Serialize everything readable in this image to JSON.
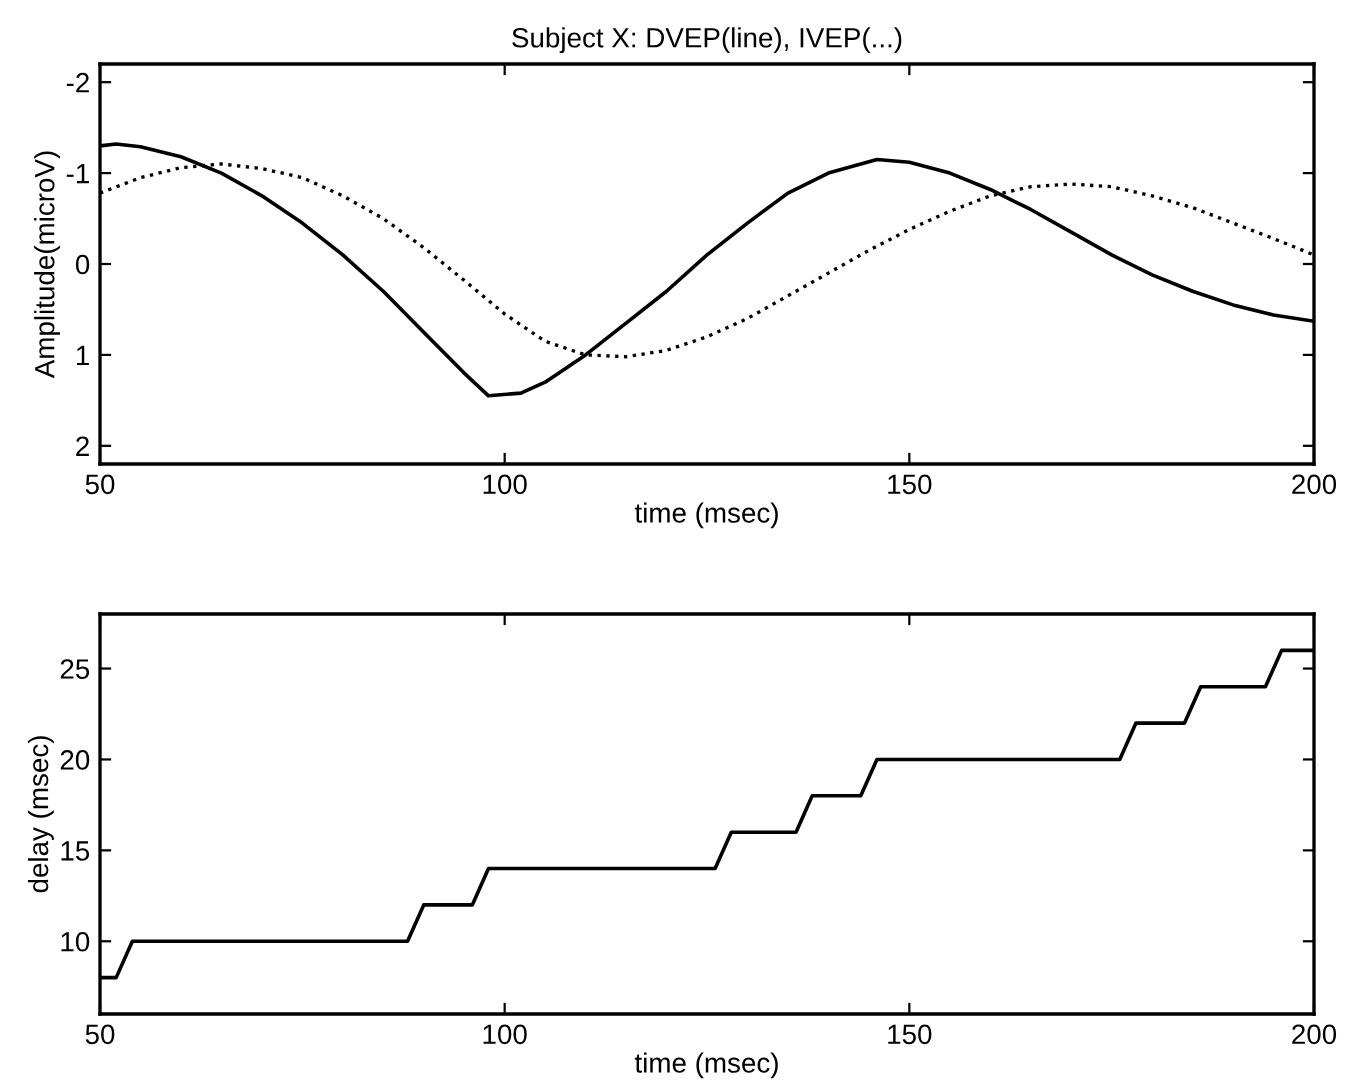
{
  "chart_data": [
    {
      "type": "line",
      "title": "Subject X: DVEP(line), IVEP(...)",
      "xlabel": "time (msec)",
      "ylabel": "Amplitude(microV)",
      "xlim": [
        50,
        200
      ],
      "xticks": [
        50,
        100,
        150,
        200
      ],
      "ylim": [
        2.2,
        -2.2
      ],
      "yticks": [
        -2,
        -1,
        0,
        1,
        2
      ],
      "marker": "none",
      "series": [
        {
          "color": "#000000",
          "line_style": "solid",
          "x": [
            50,
            52,
            55,
            60,
            65,
            70,
            75,
            80,
            85,
            90,
            95,
            98,
            102,
            105,
            110,
            115,
            120,
            125,
            130,
            135,
            140,
            146,
            150,
            155,
            160,
            165,
            170,
            175,
            180,
            185,
            190,
            195,
            200
          ],
          "values": [
            -1.3,
            -1.32,
            -1.29,
            -1.18,
            -1.0,
            -0.75,
            -0.45,
            -0.1,
            0.3,
            0.75,
            1.2,
            1.45,
            1.42,
            1.3,
            1.0,
            0.65,
            0.3,
            -0.1,
            -0.45,
            -0.78,
            -1.0,
            -1.15,
            -1.12,
            -1.0,
            -0.82,
            -0.6,
            -0.35,
            -0.1,
            0.12,
            0.3,
            0.45,
            0.56,
            0.63
          ]
        },
        {
          "color": "#000000",
          "line_style": "dotted",
          "x": [
            50,
            55,
            60,
            65,
            70,
            75,
            80,
            85,
            90,
            95,
            100,
            105,
            110,
            115,
            120,
            125,
            130,
            135,
            140,
            145,
            150,
            155,
            160,
            165,
            170,
            175,
            180,
            185,
            190,
            195,
            200
          ],
          "values": [
            -0.78,
            -0.95,
            -1.06,
            -1.1,
            -1.05,
            -0.95,
            -0.75,
            -0.5,
            -0.18,
            0.18,
            0.55,
            0.85,
            1.0,
            1.02,
            0.95,
            0.8,
            0.6,
            0.35,
            0.1,
            -0.15,
            -0.38,
            -0.58,
            -0.75,
            -0.85,
            -0.88,
            -0.85,
            -0.75,
            -0.62,
            -0.45,
            -0.28,
            -0.1
          ]
        }
      ]
    },
    {
      "type": "line",
      "xlabel": "time (msec)",
      "ylabel": "delay (msec)",
      "xlim": [
        50,
        200
      ],
      "xticks": [
        50,
        100,
        150,
        200
      ],
      "ylim": [
        6,
        28
      ],
      "yticks": [
        10,
        15,
        20,
        25
      ],
      "marker": "none",
      "series": [
        {
          "color": "#000000",
          "line_style": "solid",
          "x": [
            50,
            52,
            54,
            88,
            90,
            96,
            98,
            126,
            128,
            136,
            138,
            144,
            146,
            176,
            178,
            184,
            186,
            194,
            196,
            200
          ],
          "values": [
            8,
            8,
            10,
            10,
            12,
            12,
            14,
            14,
            16,
            16,
            18,
            18,
            20,
            20,
            22,
            22,
            24,
            24,
            26,
            26
          ]
        }
      ]
    }
  ]
}
